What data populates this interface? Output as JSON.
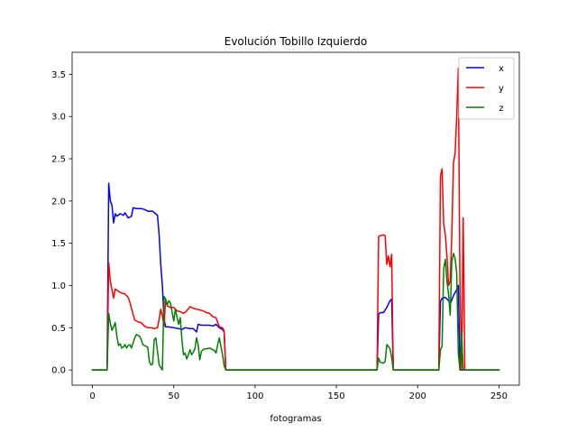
{
  "chart_data": {
    "type": "line",
    "title": "Evolución Tobillo Izquierdo",
    "xlabel": "fotogramas",
    "ylabel": "",
    "xlim": [
      -12.5,
      262.5
    ],
    "ylim": [
      -0.18,
      3.76
    ],
    "x_ticks": [
      0,
      50,
      100,
      150,
      200,
      250
    ],
    "y_ticks": [
      0.0,
      0.5,
      1.0,
      1.5,
      2.0,
      2.5,
      3.0,
      3.5
    ],
    "x_tick_labels": [
      "0",
      "50",
      "100",
      "150",
      "200",
      "250"
    ],
    "y_tick_labels": [
      "0.0",
      "0.5",
      "1.0",
      "1.5",
      "2.0",
      "2.5",
      "3.0",
      "3.5"
    ],
    "grid": false,
    "legend_position": "top-right",
    "series": [
      {
        "name": "x",
        "color": "#0000ff",
        "points": [
          [
            0,
            0
          ],
          [
            9,
            0
          ],
          [
            10,
            2.21
          ],
          [
            11,
            2.0
          ],
          [
            12,
            1.95
          ],
          [
            13,
            1.74
          ],
          [
            14,
            1.85
          ],
          [
            15,
            1.82
          ],
          [
            17,
            1.85
          ],
          [
            19,
            1.83
          ],
          [
            20,
            1.86
          ],
          [
            22,
            1.8
          ],
          [
            24,
            1.82
          ],
          [
            25,
            1.92
          ],
          [
            27,
            1.91
          ],
          [
            30,
            1.91
          ],
          [
            32,
            1.9
          ],
          [
            34,
            1.88
          ],
          [
            37,
            1.88
          ],
          [
            40,
            1.83
          ],
          [
            41,
            1.6
          ],
          [
            42,
            1.25
          ],
          [
            43,
            1.0
          ],
          [
            44,
            0.6
          ],
          [
            45,
            0.51
          ],
          [
            47,
            0.51
          ],
          [
            50,
            0.5
          ],
          [
            53,
            0.49
          ],
          [
            55,
            0.48
          ],
          [
            57,
            0.5
          ],
          [
            60,
            0.49
          ],
          [
            62,
            0.49
          ],
          [
            64,
            0.45
          ],
          [
            65,
            0.54
          ],
          [
            67,
            0.53
          ],
          [
            70,
            0.53
          ],
          [
            72,
            0.53
          ],
          [
            74,
            0.52
          ],
          [
            76,
            0.54
          ],
          [
            78,
            0.5
          ],
          [
            80,
            0.48
          ],
          [
            81,
            0.45
          ],
          [
            82,
            0
          ],
          [
            100,
            0
          ],
          [
            150,
            0
          ],
          [
            175,
            0
          ],
          [
            176,
            0.66
          ],
          [
            177,
            0.68
          ],
          [
            179,
            0.68
          ],
          [
            181,
            0.74
          ],
          [
            183,
            0.82
          ],
          [
            184,
            0.84
          ],
          [
            185,
            0
          ],
          [
            200,
            0
          ],
          [
            213,
            0
          ],
          [
            214,
            0.81
          ],
          [
            215,
            0.85
          ],
          [
            217,
            0.86
          ],
          [
            219,
            0.82
          ],
          [
            220,
            0.78
          ],
          [
            222,
            0.88
          ],
          [
            224,
            0.95
          ],
          [
            225,
            1.0
          ],
          [
            226,
            0
          ],
          [
            227,
            0
          ],
          [
            229,
            0
          ],
          [
            250,
            0
          ]
        ]
      },
      {
        "name": "y",
        "color": "#ff0000",
        "points": [
          [
            0,
            0
          ],
          [
            9,
            0
          ],
          [
            10,
            1.27
          ],
          [
            11,
            1.05
          ],
          [
            12,
            0.95
          ],
          [
            13,
            0.85
          ],
          [
            14,
            0.96
          ],
          [
            16,
            0.93
          ],
          [
            18,
            0.91
          ],
          [
            20,
            0.9
          ],
          [
            22,
            0.86
          ],
          [
            23,
            0.8
          ],
          [
            24,
            0.73
          ],
          [
            25,
            0.66
          ],
          [
            26,
            0.59
          ],
          [
            28,
            0.57
          ],
          [
            30,
            0.56
          ],
          [
            32,
            0.52
          ],
          [
            34,
            0.5
          ],
          [
            36,
            0.5
          ],
          [
            38,
            0.49
          ],
          [
            40,
            0.5
          ],
          [
            41,
            0.6
          ],
          [
            42,
            0.72
          ],
          [
            43,
            0.64
          ],
          [
            44,
            0.52
          ],
          [
            45,
            0.83
          ],
          [
            46,
            0.76
          ],
          [
            48,
            0.74
          ],
          [
            50,
            0.74
          ],
          [
            52,
            0.7
          ],
          [
            54,
            0.69
          ],
          [
            56,
            0.67
          ],
          [
            58,
            0.7
          ],
          [
            60,
            0.75
          ],
          [
            62,
            0.73
          ],
          [
            64,
            0.72
          ],
          [
            66,
            0.71
          ],
          [
            68,
            0.7
          ],
          [
            70,
            0.68
          ],
          [
            72,
            0.67
          ],
          [
            74,
            0.63
          ],
          [
            76,
            0.62
          ],
          [
            78,
            0.51
          ],
          [
            80,
            0.5
          ],
          [
            81,
            0.46
          ],
          [
            82,
            0
          ],
          [
            100,
            0
          ],
          [
            150,
            0
          ],
          [
            175,
            0
          ],
          [
            176,
            1.58
          ],
          [
            177,
            1.59
          ],
          [
            179,
            1.6
          ],
          [
            180,
            1.59
          ],
          [
            181,
            1.25
          ],
          [
            182,
            1.35
          ],
          [
            183,
            1.22
          ],
          [
            184,
            1.37
          ],
          [
            185,
            0
          ],
          [
            200,
            0
          ],
          [
            213,
            0
          ],
          [
            214,
            2.3
          ],
          [
            215,
            2.38
          ],
          [
            216,
            1.73
          ],
          [
            217,
            1.6
          ],
          [
            218,
            1.35
          ],
          [
            219,
            1.0
          ],
          [
            220,
            1.05
          ],
          [
            221,
            1.6
          ],
          [
            222,
            2.45
          ],
          [
            223,
            2.56
          ],
          [
            224,
            3.0
          ],
          [
            225,
            3.57
          ],
          [
            226,
            1.0
          ],
          [
            227,
            0
          ],
          [
            228,
            1.8
          ],
          [
            229,
            0
          ],
          [
            250,
            0
          ]
        ]
      },
      {
        "name": "z",
        "color": "#008000",
        "points": [
          [
            0,
            0
          ],
          [
            9,
            0
          ],
          [
            10,
            0.67
          ],
          [
            11,
            0.55
          ],
          [
            12,
            0.47
          ],
          [
            13,
            0.51
          ],
          [
            14,
            0.56
          ],
          [
            15,
            0.4
          ],
          [
            16,
            0.29
          ],
          [
            17,
            0.31
          ],
          [
            18,
            0.26
          ],
          [
            19,
            0.27
          ],
          [
            20,
            0.3
          ],
          [
            21,
            0.26
          ],
          [
            22,
            0.29
          ],
          [
            23,
            0.3
          ],
          [
            24,
            0.26
          ],
          [
            25,
            0.32
          ],
          [
            26,
            0.38
          ],
          [
            27,
            0.42
          ],
          [
            28,
            0.41
          ],
          [
            29,
            0.4
          ],
          [
            30,
            0.36
          ],
          [
            31,
            0.3
          ],
          [
            32,
            0.29
          ],
          [
            33,
            0.28
          ],
          [
            34,
            0.27
          ],
          [
            35,
            0.1
          ],
          [
            36,
            0.06
          ],
          [
            37,
            0.07
          ],
          [
            38,
            0.36
          ],
          [
            39,
            0.38
          ],
          [
            40,
            0.22
          ],
          [
            41,
            0.06
          ],
          [
            42,
            0.03
          ],
          [
            43,
            0
          ],
          [
            44,
            0.87
          ],
          [
            45,
            0.84
          ],
          [
            46,
            0.77
          ],
          [
            47,
            0.82
          ],
          [
            48,
            0.79
          ],
          [
            49,
            0.68
          ],
          [
            50,
            0.58
          ],
          [
            51,
            0.72
          ],
          [
            52,
            0.63
          ],
          [
            53,
            0.54
          ],
          [
            54,
            0.62
          ],
          [
            55,
            0.36
          ],
          [
            56,
            0.18
          ],
          [
            57,
            0.2
          ],
          [
            58,
            0.13
          ],
          [
            59,
            0.18
          ],
          [
            60,
            0.24
          ],
          [
            61,
            0.18
          ],
          [
            62,
            0.21
          ],
          [
            63,
            0.25
          ],
          [
            64,
            0.38
          ],
          [
            65,
            0.3
          ],
          [
            66,
            0.12
          ],
          [
            67,
            0.22
          ],
          [
            68,
            0.24
          ],
          [
            69,
            0.25
          ],
          [
            70,
            0.25
          ],
          [
            72,
            0.26
          ],
          [
            74,
            0.24
          ],
          [
            75,
            0.23
          ],
          [
            76,
            0.2
          ],
          [
            77,
            0.3
          ],
          [
            78,
            0.38
          ],
          [
            79,
            0.28
          ],
          [
            80,
            0.18
          ],
          [
            81,
            0.05
          ],
          [
            82,
            0
          ],
          [
            100,
            0
          ],
          [
            150,
            0
          ],
          [
            175,
            0
          ],
          [
            176,
            0.14
          ],
          [
            177,
            0.09
          ],
          [
            179,
            0.08
          ],
          [
            180,
            0.1
          ],
          [
            181,
            0.3
          ],
          [
            182,
            0.28
          ],
          [
            183,
            0.25
          ],
          [
            184,
            0.15
          ],
          [
            185,
            0
          ],
          [
            200,
            0
          ],
          [
            213,
            0
          ],
          [
            214,
            0.24
          ],
          [
            215,
            0.28
          ],
          [
            216,
            1.2
          ],
          [
            217,
            1.31
          ],
          [
            218,
            1.05
          ],
          [
            219,
            0.9
          ],
          [
            220,
            0.65
          ],
          [
            221,
            1.28
          ],
          [
            222,
            1.38
          ],
          [
            223,
            1.32
          ],
          [
            224,
            1.15
          ],
          [
            225,
            0.2
          ],
          [
            226,
            0
          ],
          [
            227,
            0.45
          ],
          [
            228,
            0
          ],
          [
            229,
            0
          ],
          [
            250,
            0
          ]
        ]
      }
    ]
  }
}
